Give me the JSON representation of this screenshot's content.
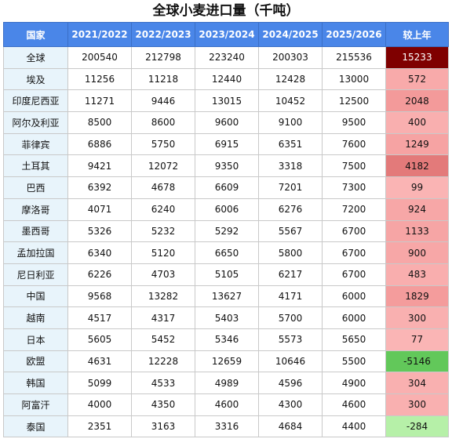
{
  "title": "全球小麦进口量（千吨）",
  "table": {
    "headers": [
      "国家",
      "2021/2022",
      "2022/2023",
      "2023/2024",
      "2024/2025",
      "2025/2026",
      "较上年"
    ],
    "rows": [
      {
        "name": "全球",
        "values": [
          "200540",
          "212798",
          "223240",
          "200303",
          "215536"
        ],
        "change": "15233",
        "change_color": "#7f0000",
        "change_text_color": "#ffffff"
      },
      {
        "name": "埃及",
        "values": [
          "11256",
          "11218",
          "12440",
          "12428",
          "13000"
        ],
        "change": "572",
        "change_color": "#f8aaaa",
        "change_text_color": "#111111"
      },
      {
        "name": "印度尼西亚",
        "values": [
          "11271",
          "9446",
          "13015",
          "10452",
          "12500"
        ],
        "change": "2048",
        "change_color": "#f39a9a",
        "change_text_color": "#111111"
      },
      {
        "name": "阿尔及利亚",
        "values": [
          "8500",
          "8600",
          "9600",
          "9100",
          "9500"
        ],
        "change": "400",
        "change_color": "#f9afaf",
        "change_text_color": "#111111"
      },
      {
        "name": "菲律宾",
        "values": [
          "6886",
          "5750",
          "6915",
          "6351",
          "7600"
        ],
        "change": "1249",
        "change_color": "#f6a3a3",
        "change_text_color": "#111111"
      },
      {
        "name": "土耳其",
        "values": [
          "9421",
          "12072",
          "9350",
          "3318",
          "7500"
        ],
        "change": "4182",
        "change_color": "#e37a7a",
        "change_text_color": "#111111"
      },
      {
        "name": "巴西",
        "values": [
          "6392",
          "4678",
          "6609",
          "7201",
          "7300"
        ],
        "change": "99",
        "change_color": "#fab4b4",
        "change_text_color": "#111111"
      },
      {
        "name": "摩洛哥",
        "values": [
          "4071",
          "6240",
          "6006",
          "6276",
          "7200"
        ],
        "change": "924",
        "change_color": "#f7a7a7",
        "change_text_color": "#111111"
      },
      {
        "name": "墨西哥",
        "values": [
          "5326",
          "5232",
          "5292",
          "5567",
          "6700"
        ],
        "change": "1133",
        "change_color": "#f6a5a5",
        "change_text_color": "#111111"
      },
      {
        "name": "孟加拉国",
        "values": [
          "6340",
          "5120",
          "6650",
          "5800",
          "6700"
        ],
        "change": "900",
        "change_color": "#f7a7a7",
        "change_text_color": "#111111"
      },
      {
        "name": "尼日利亚",
        "values": [
          "6226",
          "4703",
          "5105",
          "6217",
          "6700"
        ],
        "change": "483",
        "change_color": "#f9aeae",
        "change_text_color": "#111111"
      },
      {
        "name": "中国",
        "values": [
          "9568",
          "13282",
          "13627",
          "4171",
          "6000"
        ],
        "change": "1829",
        "change_color": "#f49c9c",
        "change_text_color": "#111111"
      },
      {
        "name": "越南",
        "values": [
          "4517",
          "4317",
          "5403",
          "5700",
          "6000"
        ],
        "change": "300",
        "change_color": "#f9b0b0",
        "change_text_color": "#111111"
      },
      {
        "name": "日本",
        "values": [
          "5605",
          "5452",
          "5346",
          "5573",
          "5650"
        ],
        "change": "77",
        "change_color": "#fab5b5",
        "change_text_color": "#111111"
      },
      {
        "name": "欧盟",
        "values": [
          "4631",
          "12228",
          "12659",
          "10646",
          "5500"
        ],
        "change": "-5146",
        "change_color": "#62c85a",
        "change_text_color": "#111111"
      },
      {
        "name": "韩国",
        "values": [
          "5099",
          "4533",
          "4989",
          "4596",
          "4900"
        ],
        "change": "304",
        "change_color": "#f9b0b0",
        "change_text_color": "#111111"
      },
      {
        "name": "阿富汗",
        "values": [
          "4000",
          "4350",
          "4600",
          "4300",
          "4600"
        ],
        "change": "300",
        "change_color": "#f9b0b0",
        "change_text_color": "#111111"
      },
      {
        "name": "泰国",
        "values": [
          "2351",
          "3163",
          "3316",
          "4684",
          "4400"
        ],
        "change": "-284",
        "change_color": "#b6f0a8",
        "change_text_color": "#111111"
      }
    ]
  }
}
